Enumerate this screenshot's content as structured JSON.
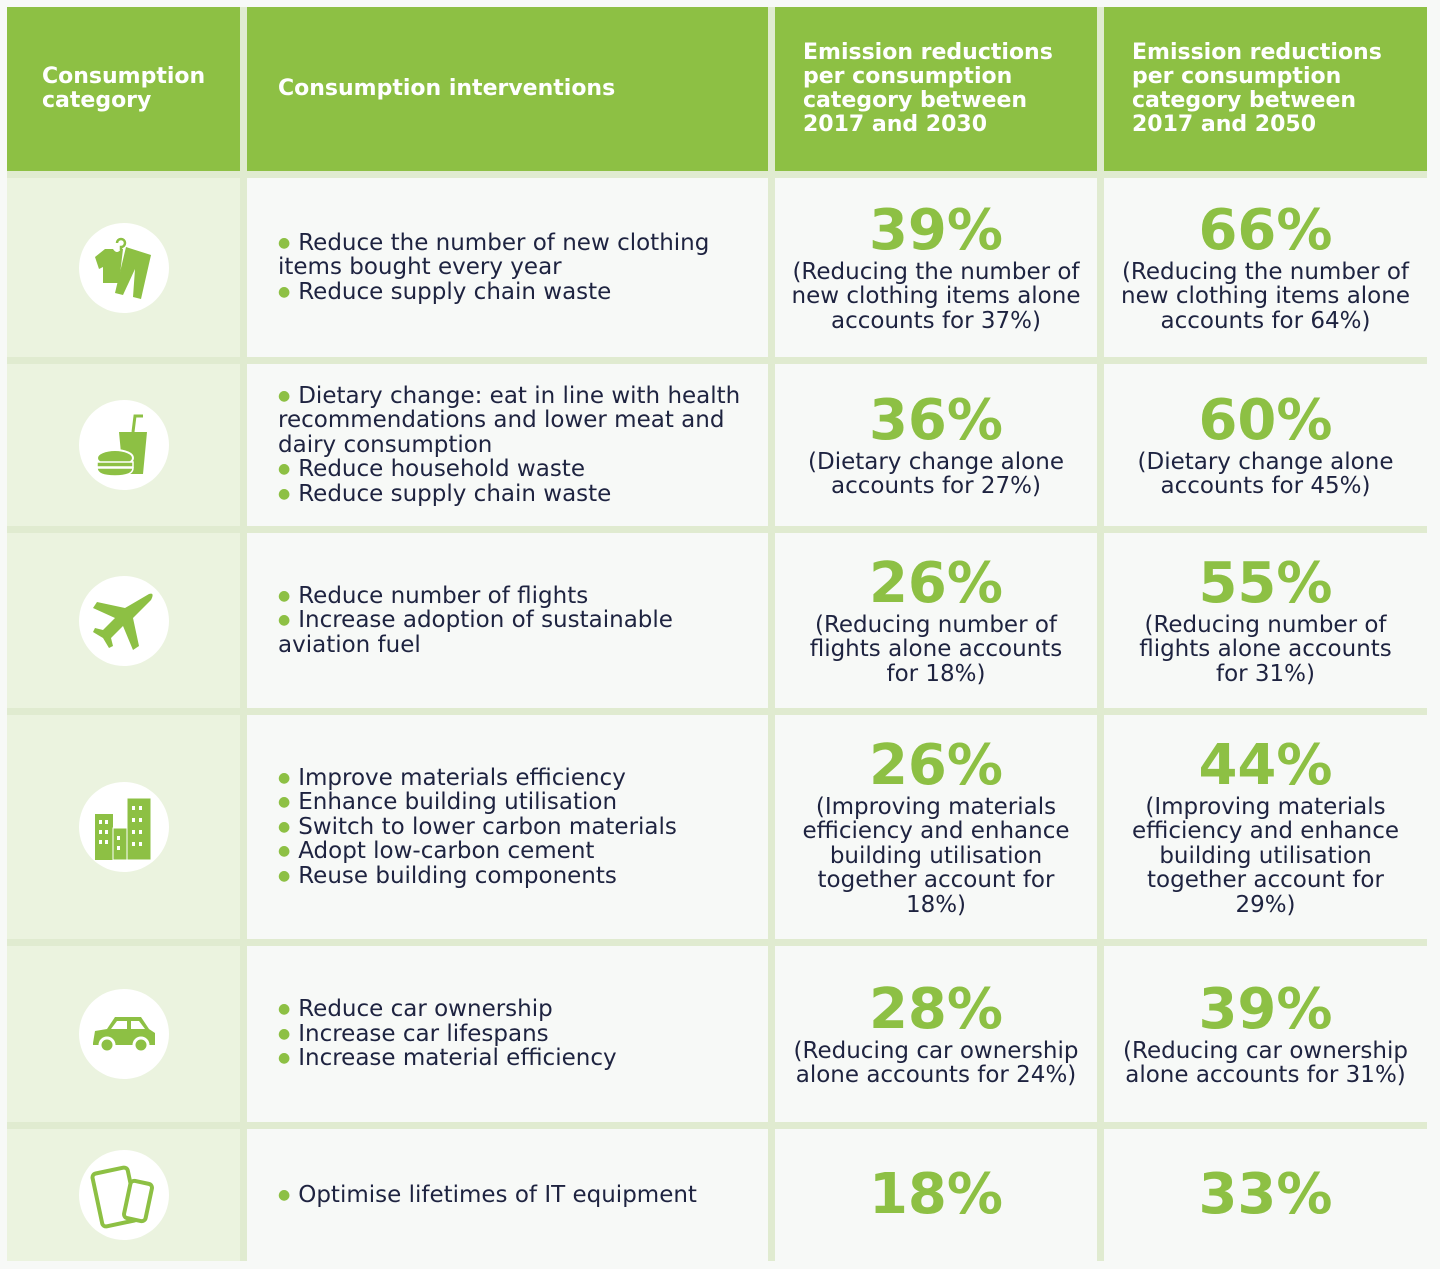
{
  "colors": {
    "accent": "#8dc044",
    "category_bg": "#ebf3df",
    "cell_bg": "#f7f9f7",
    "border": "#e0ebd0",
    "text": "#1e2340"
  },
  "headers": [
    "Consumption category",
    "Consumption interventions",
    "Emission reductions per consumption category between 2017 and 2030",
    "Emission reductions per consumption category between 2017 and 2050"
  ],
  "rows": [
    {
      "icon": "clothing-icon",
      "interventions": [
        "Reduce the number of new clothing items bought every year",
        "Reduce supply chain waste"
      ],
      "y2030": {
        "pct": "39%",
        "note": "(Reducing the number of new clothing items alone accounts for 37%)"
      },
      "y2050": {
        "pct": "66%",
        "note": "(Reducing the number of new clothing items alone accounts for 64%)"
      }
    },
    {
      "icon": "food-drink-icon",
      "interventions": [
        "Dietary change: eat in line with health recommendations and lower meat and dairy consumption",
        "Reduce household waste",
        "Reduce supply chain waste"
      ],
      "y2030": {
        "pct": "36%",
        "note": "(Dietary change alone accounts for 27%)"
      },
      "y2050": {
        "pct": "60%",
        "note": "(Dietary change alone accounts for 45%)"
      }
    },
    {
      "icon": "airplane-icon",
      "interventions": [
        "Reduce number of flights",
        "Increase adoption of sustainable aviation fuel"
      ],
      "y2030": {
        "pct": "26%",
        "note": "(Reducing number of flights alone accounts for 18%)"
      },
      "y2050": {
        "pct": "55%",
        "note": "(Reducing number of flights alone accounts for 31%)"
      }
    },
    {
      "icon": "buildings-icon",
      "interventions": [
        "Improve materials efficiency",
        "Enhance building utilisation",
        "Switch to lower carbon materials",
        "Adopt low-carbon cement",
        "Reuse building components"
      ],
      "y2030": {
        "pct": "26%",
        "note": "(Improving materials efficiency and enhance building utilisation together account for 18%)"
      },
      "y2050": {
        "pct": "44%",
        "note": "(Improving materials efficiency and enhance building utilisation together account for 29%)"
      }
    },
    {
      "icon": "car-icon",
      "interventions": [
        "Reduce car ownership",
        "Increase car lifespans",
        "Increase material efficiency"
      ],
      "y2030": {
        "pct": "28%",
        "note": "(Reducing car ownership alone accounts for 24%)"
      },
      "y2050": {
        "pct": "39%",
        "note": "(Reducing car ownership alone accounts for 31%)"
      }
    },
    {
      "icon": "devices-icon",
      "interventions": [
        "Optimise lifetimes of IT equipment"
      ],
      "y2030": {
        "pct": "18%",
        "note": ""
      },
      "y2050": {
        "pct": "33%",
        "note": ""
      }
    }
  ]
}
